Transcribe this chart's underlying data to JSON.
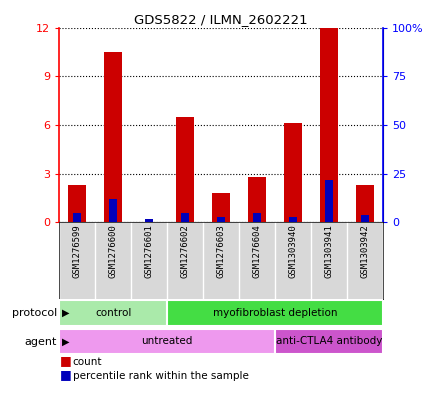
{
  "title": "GDS5822 / ILMN_2602221",
  "samples": [
    "GSM1276599",
    "GSM1276600",
    "GSM1276601",
    "GSM1276602",
    "GSM1276603",
    "GSM1276604",
    "GSM1303940",
    "GSM1303941",
    "GSM1303942"
  ],
  "counts": [
    2.3,
    10.5,
    0.05,
    6.5,
    1.8,
    2.8,
    6.1,
    12.0,
    2.3
  ],
  "percentile_ranks_pct": [
    5,
    12,
    2,
    5,
    3,
    5,
    3,
    22,
    4
  ],
  "ylim_left": [
    0,
    12
  ],
  "ylim_right": [
    0,
    100
  ],
  "yticks_left": [
    0,
    3,
    6,
    9,
    12
  ],
  "yticks_right": [
    0,
    25,
    50,
    75,
    100
  ],
  "ytick_labels_right": [
    "0",
    "25",
    "50",
    "75",
    "100%"
  ],
  "count_color": "#cc0000",
  "percentile_color": "#0000bb",
  "bar_width": 0.5,
  "protocol_groups": [
    {
      "label": "control",
      "start": 0,
      "end": 3,
      "color": "#aaeaaa"
    },
    {
      "label": "myofibroblast depletion",
      "start": 3,
      "end": 9,
      "color": "#44dd44"
    }
  ],
  "agent_groups": [
    {
      "label": "untreated",
      "start": 0,
      "end": 6,
      "color": "#ee99ee"
    },
    {
      "label": "anti-CTLA4 antibody",
      "start": 6,
      "end": 9,
      "color": "#cc55cc"
    }
  ],
  "legend_count_label": "count",
  "legend_pct_label": "percentile rank within the sample",
  "grid_color": "black",
  "sample_bg_color": "#d8d8d8",
  "plot_bg_color": "#ffffff"
}
